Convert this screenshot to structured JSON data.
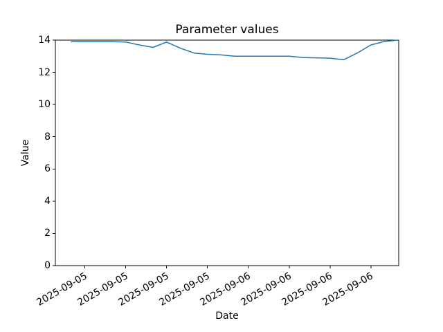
{
  "chart_data": {
    "type": "line",
    "title": "Parameter values",
    "grid": false,
    "legend": null,
    "x_axis": {
      "label": "Date",
      "range": [
        "2025-09-04 19:40",
        "2025-09-06 22:05"
      ],
      "tick_times": [
        "2025-09-05 00:00",
        "2025-09-05 06:00",
        "2025-09-05 12:00",
        "2025-09-05 18:00",
        "2025-09-06 00:00",
        "2025-09-06 06:00",
        "2025-09-06 12:00",
        "2025-09-06 18:00"
      ],
      "tick_labels": [
        "2025-09-05",
        "2025-09-05",
        "2025-09-05",
        "2025-09-05",
        "2025-09-06",
        "2025-09-06",
        "2025-09-06",
        "2025-09-06"
      ],
      "tick_rotation_deg": 30
    },
    "y_axis": {
      "label": "Value",
      "range": [
        0,
        14
      ],
      "ticks": [
        0,
        2,
        4,
        6,
        8,
        10,
        12,
        14
      ],
      "tick_labels": [
        "0",
        "2",
        "4",
        "6",
        "8",
        "10",
        "12",
        "14"
      ]
    },
    "series": [
      {
        "name": "Parameter values",
        "color": "#1f77b4",
        "line_width": 1.5,
        "points": [
          {
            "x": "2025-09-04 22:00",
            "y": 13.9
          },
          {
            "x": "2025-09-05 00:00",
            "y": 13.9
          },
          {
            "x": "2025-09-05 02:00",
            "y": 13.9
          },
          {
            "x": "2025-09-05 04:00",
            "y": 13.9
          },
          {
            "x": "2025-09-05 06:00",
            "y": 13.88
          },
          {
            "x": "2025-09-05 08:00",
            "y": 13.7
          },
          {
            "x": "2025-09-05 10:00",
            "y": 13.55
          },
          {
            "x": "2025-09-05 12:00",
            "y": 13.88
          },
          {
            "x": "2025-09-05 14:00",
            "y": 13.5
          },
          {
            "x": "2025-09-05 16:00",
            "y": 13.2
          },
          {
            "x": "2025-09-05 18:00",
            "y": 13.12
          },
          {
            "x": "2025-09-05 20:00",
            "y": 13.08
          },
          {
            "x": "2025-09-05 22:00",
            "y": 13.0
          },
          {
            "x": "2025-09-06 00:00",
            "y": 13.0
          },
          {
            "x": "2025-09-06 02:00",
            "y": 13.0
          },
          {
            "x": "2025-09-06 04:00",
            "y": 13.0
          },
          {
            "x": "2025-09-06 06:00",
            "y": 13.0
          },
          {
            "x": "2025-09-06 08:00",
            "y": 12.92
          },
          {
            "x": "2025-09-06 10:00",
            "y": 12.9
          },
          {
            "x": "2025-09-06 12:00",
            "y": 12.88
          },
          {
            "x": "2025-09-06 14:00",
            "y": 12.78
          },
          {
            "x": "2025-09-06 16:00",
            "y": 13.2
          },
          {
            "x": "2025-09-06 18:00",
            "y": 13.7
          },
          {
            "x": "2025-09-06 20:00",
            "y": 13.92
          },
          {
            "x": "2025-09-06 22:00",
            "y": 14.0
          }
        ]
      }
    ],
    "colors": {
      "line": "#1f77b4",
      "spine": "#000000",
      "background": "#ffffff",
      "text": "#000000"
    }
  }
}
